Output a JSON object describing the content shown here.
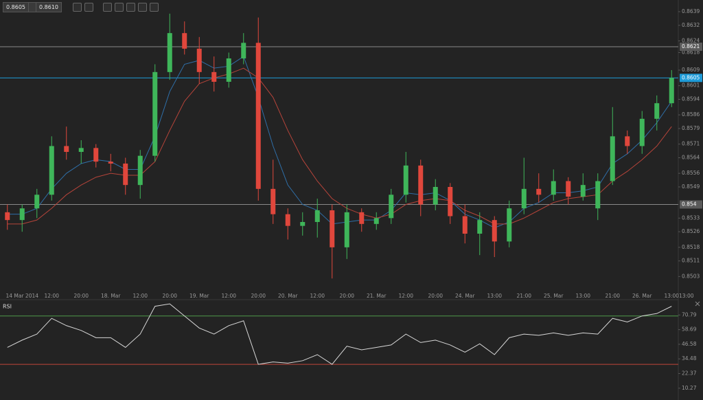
{
  "toolbar": {
    "bid": "0.8605",
    "ask": "0.8610"
  },
  "chart_data": [
    {
      "type": "candlestick",
      "categories": [
        null,
        "14 Mar 2014",
        null,
        "12:00",
        null,
        "20:00",
        null,
        "18. Mar",
        null,
        "12:00",
        null,
        "20:00",
        null,
        "19. Mar",
        null,
        "12:00",
        null,
        "20:00",
        null,
        "20. Mar",
        null,
        "12:00",
        null,
        "20:00",
        null,
        "21. Mar",
        null,
        "12:00",
        null,
        "20:00",
        null,
        "24. Mar",
        null,
        "13:00",
        null,
        "21:00",
        null,
        "25. Mar",
        null,
        "13:00",
        null,
        "21:00",
        null,
        "26. Mar",
        null,
        "13:00",
        "13:00"
      ],
      "open": [
        0.8536,
        0.8532,
        0.8538,
        0.8545,
        0.857,
        0.8567,
        0.8569,
        0.8562,
        0.8561,
        0.855,
        0.8565,
        0.8608,
        0.8628,
        0.862,
        0.8608,
        0.8603,
        0.8615,
        0.8623,
        0.8548,
        0.8535,
        0.8529,
        0.8531,
        0.8537,
        0.8518,
        0.8536,
        0.853,
        0.8533,
        0.8545,
        0.856,
        0.854,
        0.8549,
        0.8534,
        0.8525,
        0.8532,
        0.8521,
        0.8538,
        0.8548,
        0.8545,
        0.8552,
        0.8544,
        0.8538,
        0.8552,
        0.8575,
        0.857,
        0.8584,
        0.8592,
        null
      ],
      "high": [
        0.854,
        0.854,
        0.8548,
        0.8575,
        0.858,
        0.8573,
        0.8571,
        0.8566,
        0.8564,
        0.8568,
        0.8612,
        0.8638,
        0.8634,
        0.8626,
        0.8616,
        0.8618,
        0.8628,
        0.8636,
        0.8563,
        0.8538,
        0.8536,
        0.8543,
        0.854,
        0.854,
        0.8538,
        0.8536,
        0.8548,
        0.8567,
        0.8563,
        0.8553,
        0.8551,
        0.854,
        0.8536,
        0.8534,
        0.8542,
        0.8564,
        0.8556,
        0.8558,
        0.8554,
        0.8556,
        0.8556,
        0.859,
        0.8578,
        0.8588,
        0.8596,
        0.8609,
        null
      ],
      "low": [
        0.8527,
        0.8526,
        0.8533,
        0.8542,
        0.8563,
        0.8561,
        0.8559,
        0.8557,
        0.8545,
        0.8543,
        0.8562,
        0.8604,
        0.8617,
        0.8602,
        0.8598,
        0.86,
        0.8612,
        0.8542,
        0.853,
        0.8522,
        0.8524,
        0.8523,
        0.8502,
        0.8512,
        0.8526,
        0.8527,
        0.853,
        0.8541,
        0.8534,
        0.8537,
        0.853,
        0.852,
        0.8514,
        0.8513,
        0.8518,
        0.8535,
        0.8541,
        0.8542,
        0.854,
        0.8542,
        0.8532,
        0.855,
        0.8566,
        0.8566,
        0.8578,
        0.859,
        null
      ],
      "close": [
        0.8532,
        0.8538,
        0.8545,
        0.857,
        0.8567,
        0.8569,
        0.8562,
        0.8561,
        0.855,
        0.8565,
        0.8608,
        0.8628,
        0.862,
        0.8608,
        0.8603,
        0.8615,
        0.8623,
        0.8548,
        0.8535,
        0.8529,
        0.8531,
        0.8537,
        0.8518,
        0.8536,
        0.853,
        0.8533,
        0.8545,
        0.856,
        0.854,
        0.8549,
        0.8534,
        0.8525,
        0.8532,
        0.8521,
        0.8538,
        0.8548,
        0.8545,
        0.8552,
        0.8544,
        0.855,
        0.8552,
        0.8575,
        0.857,
        0.8584,
        0.8592,
        0.8605,
        null
      ],
      "up_color": "#3fb65a",
      "down_color": "#e0473c",
      "lines": [
        {
          "color": "#2f6fa8",
          "values": [
            0.8535,
            0.8535,
            0.8538,
            0.8548,
            0.8556,
            0.8561,
            0.8563,
            0.8562,
            0.8558,
            0.8558,
            0.8575,
            0.8598,
            0.8612,
            0.8614,
            0.861,
            0.8611,
            0.8616,
            0.8595,
            0.857,
            0.855,
            0.854,
            0.8537,
            0.853,
            0.8531,
            0.8532,
            0.8532,
            0.8537,
            0.8546,
            0.8545,
            0.8546,
            0.8542,
            0.8535,
            0.8532,
            0.8528,
            0.8531,
            0.8538,
            0.8541,
            0.8546,
            0.8546,
            0.8547,
            0.8549,
            0.8561,
            0.8566,
            0.8573,
            0.8582,
            0.8593,
            null
          ]
        },
        {
          "color": "#b6443a",
          "values": [
            0.853,
            0.853,
            0.8532,
            0.8538,
            0.8545,
            0.855,
            0.8554,
            0.8556,
            0.8555,
            0.8555,
            0.8562,
            0.8578,
            0.8593,
            0.8602,
            0.8605,
            0.8607,
            0.861,
            0.8605,
            0.8595,
            0.8578,
            0.8563,
            0.8552,
            0.8543,
            0.8538,
            0.8535,
            0.8533,
            0.8535,
            0.854,
            0.8542,
            0.8543,
            0.8542,
            0.8537,
            0.8534,
            0.853,
            0.853,
            0.8533,
            0.8537,
            0.8541,
            0.8543,
            0.8544,
            0.8545,
            0.8552,
            0.8557,
            0.8563,
            0.857,
            0.858,
            null
          ]
        }
      ],
      "levels": [
        {
          "value": 0.8621,
          "color": "#8a8a8a"
        },
        {
          "value": 0.8605,
          "color": "#1e9bd8"
        },
        {
          "value": 0.854,
          "color": "#8a8a8a"
        }
      ],
      "ylim": [
        0.8495,
        0.8645
      ],
      "yticks": [
        0.8639,
        0.8632,
        0.8624,
        0.8618,
        0.8609,
        0.8601,
        0.8594,
        0.8586,
        0.8579,
        0.8571,
        0.8564,
        0.8556,
        0.8549,
        0.8533,
        0.8526,
        0.8518,
        0.8511,
        0.8503
      ]
    },
    {
      "type": "line",
      "title": "RSI",
      "color": "#d8d8d8",
      "values": [
        44,
        50,
        55,
        68,
        62,
        58,
        52,
        52,
        44,
        55,
        78,
        80,
        70,
        60,
        55,
        62,
        66,
        30,
        32,
        31,
        33,
        38,
        30,
        45,
        42,
        44,
        46,
        55,
        48,
        50,
        46,
        40,
        47,
        38,
        52,
        55,
        54,
        56,
        54,
        56,
        55,
        68,
        65,
        70,
        72,
        78,
        null
      ],
      "levels": [
        {
          "value": 70,
          "color": "#4f9a4a"
        },
        {
          "value": 30,
          "color": "#c2443a"
        }
      ],
      "ylim": [
        0.5,
        82.9
      ],
      "yticks": [
        70.79,
        58.69,
        46.58,
        34.48,
        22.37,
        10.27
      ]
    }
  ]
}
